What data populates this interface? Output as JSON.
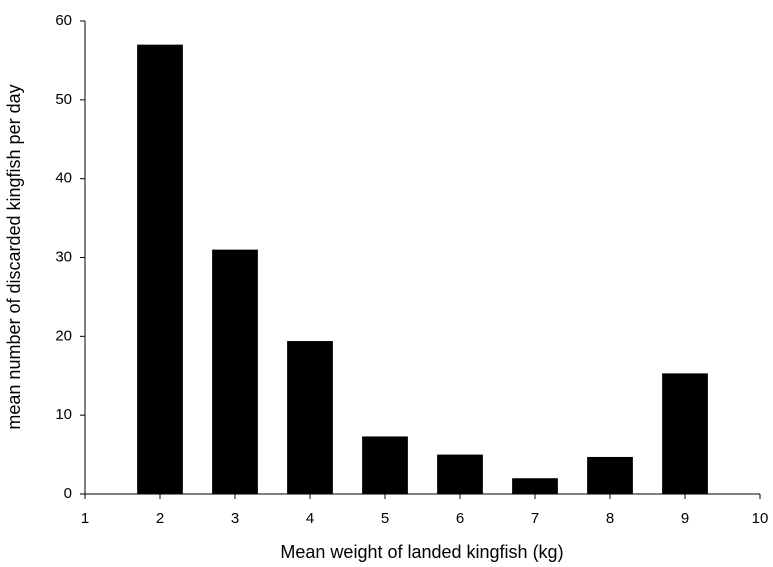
{
  "chart_data": {
    "type": "bar",
    "x_label": "Mean weight of landed kingfish (kg)",
    "y_label": "mean number of discarded kingfish per day",
    "x": [
      2,
      3,
      4,
      5,
      6,
      7,
      8,
      9
    ],
    "values": [
      57,
      31,
      19.4,
      7.3,
      5,
      2,
      4.7,
      15.3
    ],
    "color": "#000000",
    "xlim": [
      1,
      10
    ],
    "xticks": [
      1,
      2,
      3,
      4,
      5,
      6,
      7,
      8,
      9,
      10
    ],
    "ylim": [
      0,
      60
    ],
    "yticks": [
      0,
      10,
      20,
      30,
      40,
      50,
      60
    ],
    "grid": false
  }
}
